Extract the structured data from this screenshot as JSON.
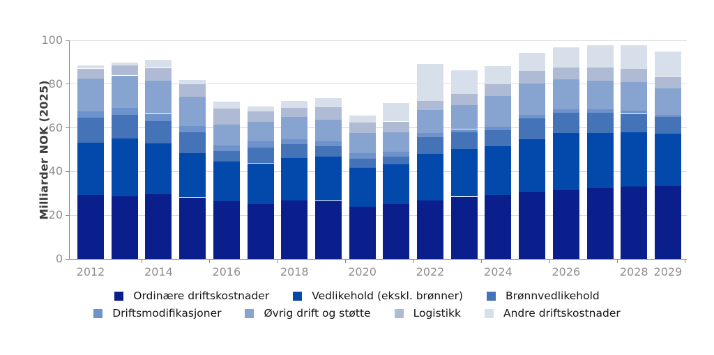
{
  "chart_data": {
    "type": "bar",
    "stacked": true,
    "title": "",
    "ylabel": "Milliarder NOK (2025)",
    "ylim": [
      0,
      100
    ],
    "yticks": [
      0,
      20,
      40,
      60,
      80,
      100
    ],
    "grid": "horizontal",
    "legend_position": "bottom",
    "categories": [
      "2012",
      "2013",
      "2014",
      "2015",
      "2016",
      "2017",
      "2018",
      "2019",
      "2020",
      "2021",
      "2022",
      "2023",
      "2024",
      "2025",
      "2026",
      "2027",
      "2028",
      "2029"
    ],
    "x_axis_labels": [
      {
        "label": "2012",
        "index": 0
      },
      {
        "label": "2014",
        "index": 2
      },
      {
        "label": "2016",
        "index": 4
      },
      {
        "label": "2018",
        "index": 6
      },
      {
        "label": "2020",
        "index": 8
      },
      {
        "label": "2022",
        "index": 10
      },
      {
        "label": "2024",
        "index": 12
      },
      {
        "label": "2026",
        "index": 14
      },
      {
        "label": "2028",
        "index": 16
      },
      {
        "label": "2029",
        "index": 17
      }
    ],
    "series": [
      {
        "name": "Ordinære driftskostnader",
        "color": "#0A1F8C",
        "values": [
          29.2,
          28.7,
          29.5,
          28.2,
          26.5,
          25.3,
          26.7,
          26.6,
          24.0,
          25.1,
          26.9,
          28.5,
          29.3,
          30.6,
          31.4,
          32.5,
          33.2,
          33.5
        ]
      },
      {
        "name": "Vedlikehold (ekskl. brønner)",
        "color": "#0349AC",
        "values": [
          24.0,
          26.4,
          23.3,
          20.1,
          18.0,
          18.5,
          19.6,
          20.1,
          17.7,
          18.2,
          21.3,
          21.7,
          22.4,
          24.3,
          26.1,
          25.1,
          24.9,
          23.7
        ]
      },
      {
        "name": "Brønnvedlikehold",
        "color": "#4573B8",
        "values": [
          11.5,
          10.8,
          10.4,
          9.8,
          4.9,
          7.1,
          6.3,
          4.9,
          4.2,
          3.4,
          7.6,
          7.9,
          7.2,
          9.5,
          9.5,
          9.2,
          8.3,
          7.8
        ]
      },
      {
        "name": "Driftsmodifikasjoner",
        "color": "#6E92CB",
        "values": [
          2.9,
          3.2,
          3.2,
          2.6,
          2.5,
          2.8,
          2.1,
          2.3,
          2.4,
          2.4,
          1.9,
          1.3,
          1.5,
          1.6,
          1.4,
          1.7,
          1.5,
          1.0
        ]
      },
      {
        "name": "Øvrig drift og støtte",
        "color": "#87A4D1",
        "values": [
          15.0,
          14.8,
          15.0,
          13.5,
          9.5,
          8.9,
          10.3,
          9.7,
          9.2,
          9.0,
          10.5,
          10.9,
          14.1,
          14.3,
          13.8,
          13.1,
          13.0,
          11.9
        ]
      },
      {
        "name": "Logistikk",
        "color": "#AFBBD4",
        "values": [
          4.5,
          4.5,
          6.0,
          5.6,
          7.4,
          4.9,
          4.2,
          5.9,
          5.0,
          4.8,
          4.2,
          5.3,
          5.6,
          5.8,
          5.5,
          5.9,
          6.0,
          5.7
        ]
      },
      {
        "name": "Andre driftskostnader",
        "color": "#D7E0EA",
        "values": [
          1.3,
          1.4,
          3.7,
          2.1,
          3.2,
          2.3,
          3.2,
          4.2,
          3.2,
          8.3,
          16.9,
          10.6,
          8.2,
          8.2,
          9.0,
          10.3,
          10.9,
          11.4
        ]
      }
    ],
    "legend_rows": [
      [
        0,
        1,
        2
      ],
      [
        3,
        4,
        5,
        6
      ]
    ]
  },
  "style_colors": {
    "gridline": "#d9d9d9",
    "axis": "#8a8a8a",
    "tick_label": "#8e8e8e",
    "axis_title": "#3d3d3d",
    "legend_text": "#141414"
  }
}
